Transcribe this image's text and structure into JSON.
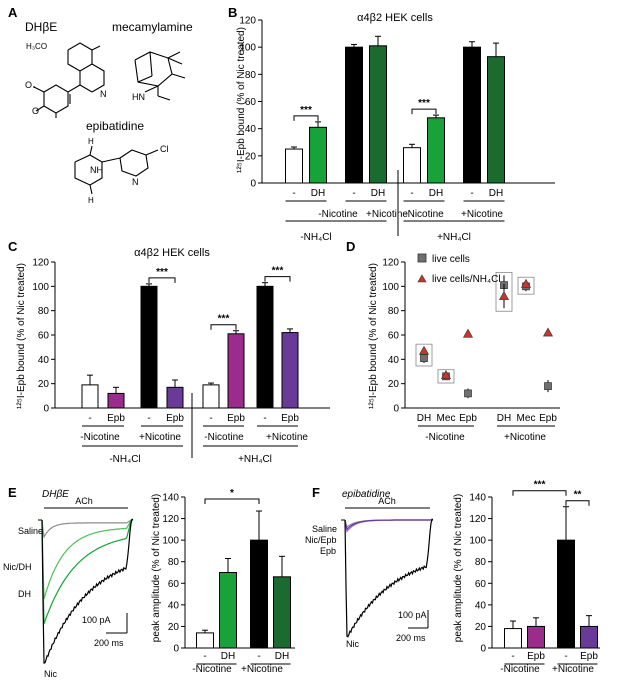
{
  "colors": {
    "white": "#ffffff",
    "black": "#000000",
    "green": "#17a23a",
    "darkgreen": "#1b6b2f",
    "magenta": "#9b2c8c",
    "purple": "#6a3a99",
    "grey": "#707070",
    "red": "#c8352b",
    "greytrace": "#8c8c8c",
    "lightgreen": "#4fbf5a",
    "lightpurple": "#9a6fd0"
  },
  "panelA": {
    "label": "A",
    "names": [
      "DHβE",
      "mecamylamine",
      "epibatidine"
    ],
    "atoms": {
      "h3co": "H₃CO",
      "o1": "O",
      "o2": "O",
      "n1": "N",
      "hn": "HN",
      "nh": "NH",
      "n2": "N",
      "cl": "Cl",
      "h1": "H",
      "h2": "H"
    }
  },
  "chart_data": [
    {
      "panel": "B",
      "type": "bar",
      "title": "α4β2 HEK cells",
      "ylabel": "¹²⁵I-Epb bound (% of Nic treated)",
      "ylim": [
        0,
        120
      ],
      "yticks": [
        0,
        20,
        40,
        60,
        80,
        100,
        120
      ],
      "bars": [
        {
          "label": "-",
          "value": 25,
          "err": 1.5,
          "color": "white"
        },
        {
          "label": "DH",
          "value": 41,
          "err": 4,
          "color": "green"
        },
        {
          "label": "-",
          "value": 100,
          "err": 2,
          "color": "black"
        },
        {
          "label": "DH",
          "value": 101,
          "err": 7,
          "color": "darkgreen"
        },
        {
          "label": "-",
          "value": 26,
          "err": 2.5,
          "color": "white"
        },
        {
          "label": "DH",
          "value": 48,
          "err": 2,
          "color": "green"
        },
        {
          "label": "-",
          "value": 100,
          "err": 4,
          "color": "black"
        },
        {
          "label": "DH",
          "value": 93,
          "err": 10,
          "color": "darkgreen"
        }
      ],
      "groups": [
        "-Nicotine",
        "+Nicotine",
        "-Nicotine",
        "+Nicotine"
      ],
      "conditions": [
        "-NH₄Cl",
        "+NH₄Cl"
      ],
      "significance": [
        {
          "bars": [
            0,
            1
          ],
          "text": "***"
        },
        {
          "bars": [
            4,
            5
          ],
          "text": "***"
        }
      ]
    },
    {
      "panel": "C",
      "type": "bar",
      "title": "α4β2 HEK cells",
      "ylabel": "¹²⁵I-Epb bound (% of Nic treated)",
      "ylim": [
        0,
        120
      ],
      "yticks": [
        0,
        20,
        40,
        60,
        80,
        100,
        120
      ],
      "bars": [
        {
          "label": "-",
          "value": 19,
          "err": 8,
          "color": "white"
        },
        {
          "label": "Epb",
          "value": 12,
          "err": 5,
          "color": "magenta"
        },
        {
          "label": "-",
          "value": 100,
          "err": 2,
          "color": "black"
        },
        {
          "label": "Epb",
          "value": 17,
          "err": 6,
          "color": "purple"
        },
        {
          "label": "-",
          "value": 19,
          "err": 1.5,
          "color": "white"
        },
        {
          "label": "Epb",
          "value": 61,
          "err": 2.5,
          "color": "magenta"
        },
        {
          "label": "-",
          "value": 100,
          "err": 3,
          "color": "black"
        },
        {
          "label": "Epb",
          "value": 62,
          "err": 3,
          "color": "purple"
        }
      ],
      "groups": [
        "-Nicotine",
        "+Nicotine",
        "-Nicotine",
        "+Nicotine"
      ],
      "conditions": [
        "-NH₄Cl",
        "+NH₄Cl"
      ],
      "significance": [
        {
          "bars": [
            2,
            3
          ],
          "text": "***"
        },
        {
          "bars": [
            4,
            5
          ],
          "text": "***"
        },
        {
          "bars": [
            6,
            7
          ],
          "text": "***"
        }
      ]
    },
    {
      "panel": "D",
      "type": "scatter",
      "ylabel": "¹²⁵I-Epb bound (% of Nic treated)",
      "ylim": [
        0,
        120
      ],
      "yticks": [
        0,
        20,
        40,
        60,
        80,
        100,
        120
      ],
      "categories": [
        "DH",
        "Mec",
        "Epb",
        "DH",
        "Mec",
        "Epb"
      ],
      "groups": [
        "-Nicotine",
        "+Nicotine"
      ],
      "legend": [
        "live cells",
        "live cells/NH₄Cl"
      ],
      "series": [
        {
          "name": "live cells",
          "values": [
            41,
            26,
            12,
            101,
            100,
            18
          ],
          "errs": [
            4,
            3,
            4,
            8,
            4,
            5
          ],
          "color": "grey",
          "marker": "square"
        },
        {
          "name": "live cells/NH₄Cl",
          "values": [
            47,
            27,
            61,
            92,
            102,
            62
          ],
          "errs": [
            3,
            2,
            2,
            10,
            3,
            2
          ],
          "color": "red",
          "marker": "triangle"
        }
      ],
      "boxed": [
        0,
        1,
        3,
        4
      ]
    },
    {
      "panel": "E",
      "type": "bar",
      "title": "DHβE",
      "ylabel": "peak amplitude (% of Nic treated)",
      "ylim": [
        0,
        140
      ],
      "yticks": [
        0,
        20,
        40,
        60,
        80,
        100,
        120,
        140
      ],
      "bars": [
        {
          "label": "-",
          "value": 14,
          "err": 2.5,
          "color": "white"
        },
        {
          "label": "DH",
          "value": 70,
          "err": 13,
          "color": "green"
        },
        {
          "label": "-",
          "value": 100,
          "err": 27,
          "color": "black"
        },
        {
          "label": "DH",
          "value": 66,
          "err": 19,
          "color": "darkgreen"
        }
      ],
      "groups": [
        "-Nicotine",
        "+Nicotine"
      ],
      "significance": [
        {
          "bars": [
            0,
            2
          ],
          "text": "*"
        }
      ]
    },
    {
      "panel": "F",
      "type": "bar",
      "title": "epibatidine",
      "ylabel": "peak amplitude (% of Nic treated)",
      "ylim": [
        0,
        140
      ],
      "yticks": [
        0,
        20,
        40,
        60,
        80,
        100,
        120,
        140
      ],
      "bars": [
        {
          "label": "-",
          "value": 18,
          "err": 7,
          "color": "white"
        },
        {
          "label": "Epb",
          "value": 20,
          "err": 8,
          "color": "magenta"
        },
        {
          "label": "-",
          "value": 100,
          "err": 31,
          "color": "black"
        },
        {
          "label": "Epb",
          "value": 20,
          "err": 10,
          "color": "purple"
        }
      ],
      "groups": [
        "-Nicotine",
        "+Nicotine"
      ],
      "significance": [
        {
          "bars": [
            0,
            2
          ],
          "text": "***"
        },
        {
          "bars": [
            2,
            3
          ],
          "text": "**"
        }
      ]
    }
  ],
  "traces": {
    "E": {
      "stimulus": "ACh",
      "labels": [
        "Saline",
        "Nic/DH",
        "DH",
        "Nic"
      ],
      "label_colors": [
        "greytrace",
        "green",
        "green",
        "black"
      ],
      "scale_y": "100 pA",
      "scale_x": "200 ms",
      "curves": [
        {
          "name": "Saline",
          "color": "greytrace",
          "peak": 0.12,
          "plateau": 0.02,
          "tau": 0.08
        },
        {
          "name": "Nic/DH",
          "color": "lightgreen",
          "peak": 0.55,
          "plateau": 0.05,
          "tau": 0.22
        },
        {
          "name": "DH",
          "color": "green",
          "peak": 0.72,
          "plateau": 0.08,
          "tau": 0.35
        },
        {
          "name": "Nic",
          "color": "black",
          "peak": 1.0,
          "plateau": 0.2,
          "tau": 0.5
        }
      ]
    },
    "F": {
      "stimulus": "ACh",
      "labels": [
        "Saline",
        "Nic/Epb",
        "Epb",
        "Nic"
      ],
      "label_colors": [
        "greytrace",
        "purple",
        "magenta",
        "black"
      ],
      "scale_y": "100 pA",
      "scale_x": "200 ms",
      "curves": [
        {
          "name": "Saline",
          "color": "greytrace",
          "peak": 0.06,
          "plateau": 0.0,
          "tau": 0.1
        },
        {
          "name": "Nic/Epb",
          "color": "lightpurple",
          "peak": 0.1,
          "plateau": 0.0,
          "tau": 0.1
        },
        {
          "name": "Epb",
          "color": "purple",
          "peak": 0.08,
          "plateau": 0.0,
          "tau": 0.1
        },
        {
          "name": "Nic",
          "color": "black",
          "peak": 1.0,
          "plateau": 0.25,
          "tau": 0.55
        }
      ]
    }
  },
  "panel_labels": {
    "B": "B",
    "C": "C",
    "D": "D",
    "E": "E",
    "F": "F"
  }
}
